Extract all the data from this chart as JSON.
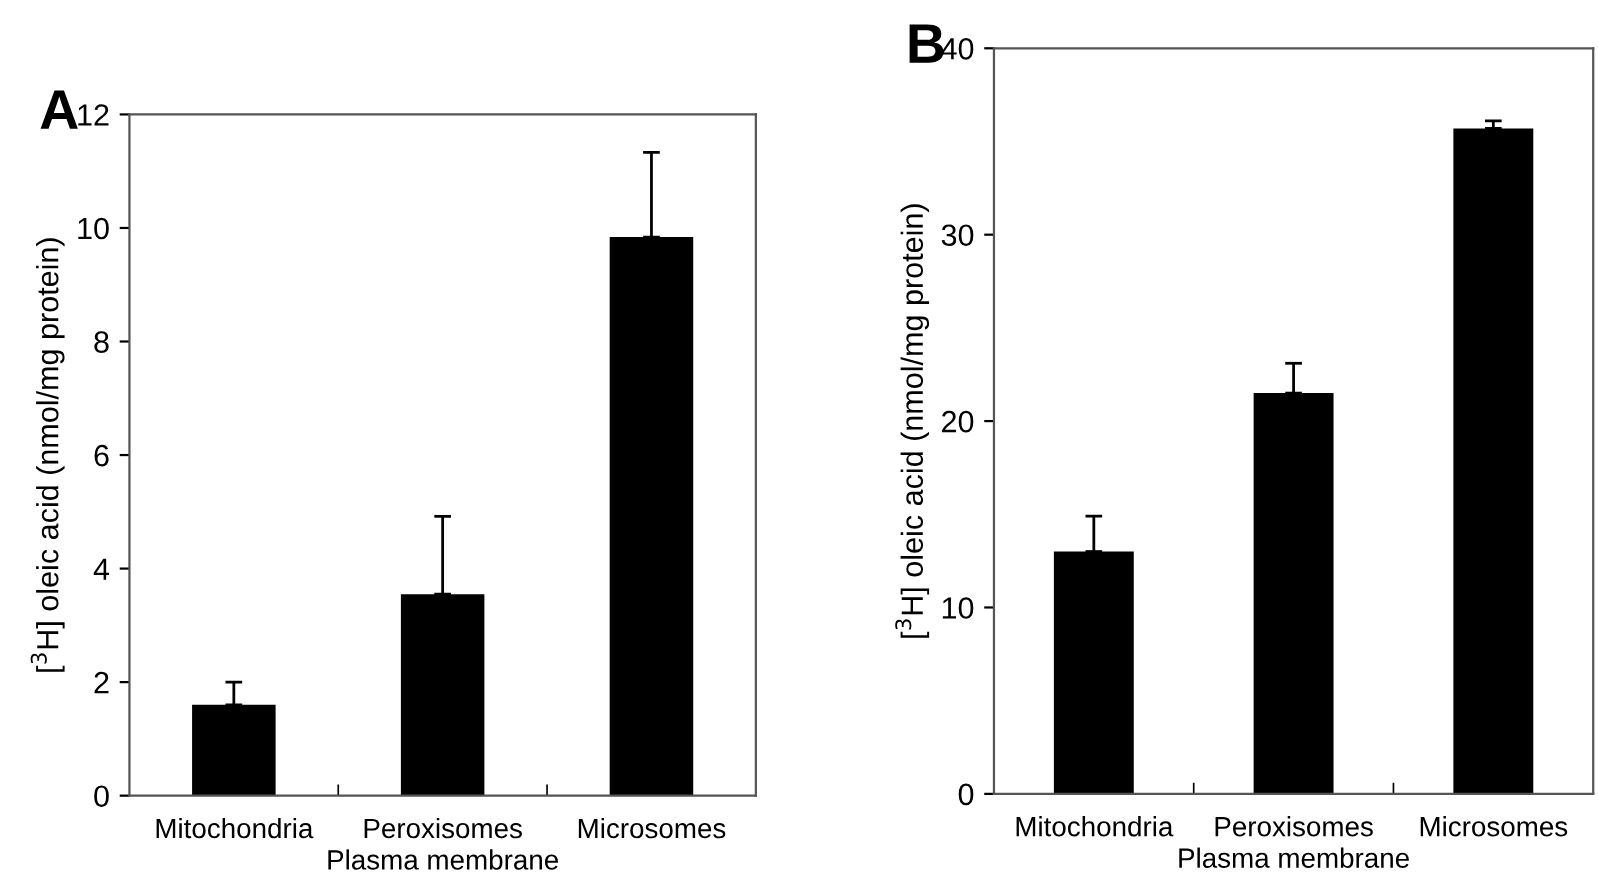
{
  "chart_data": [
    {
      "type": "bar",
      "title": "A",
      "xlabel": "Plasma membrane",
      "ylabel": "[$^{3}$H] oleic acid (nmol/mg protein)",
      "categories": [
        "Mitochondria",
        "Peroxisomes",
        "Microsomes"
      ],
      "values": [
        1.6,
        3.55,
        9.84
      ],
      "color": "#000000",
      "errors": [
        [
          1.6,
          2.0
        ],
        [
          3.55,
          4.92
        ],
        [
          9.84,
          11.33
        ]
      ],
      "ylim": [
        0,
        12
      ],
      "yticks": [
        0,
        2,
        4,
        6,
        8,
        10,
        12
      ],
      "grid": false
    },
    {
      "type": "bar",
      "title": "B",
      "xlabel": "Plasma membrane",
      "ylabel": "[$^{3}$H] oleic acid (nmol/mg protein)",
      "categories": [
        "Mitochondria",
        "Peroxisomes",
        "Microsomes"
      ],
      "values": [
        13.0,
        21.5,
        35.7
      ],
      "color": "#000000",
      "errors": [
        [
          13.0,
          14.9
        ],
        [
          21.5,
          23.1
        ],
        [
          35.7,
          36.1
        ]
      ],
      "ylim": [
        0,
        40
      ],
      "yticks": [
        0,
        10,
        20,
        30,
        40
      ],
      "grid": false
    }
  ]
}
